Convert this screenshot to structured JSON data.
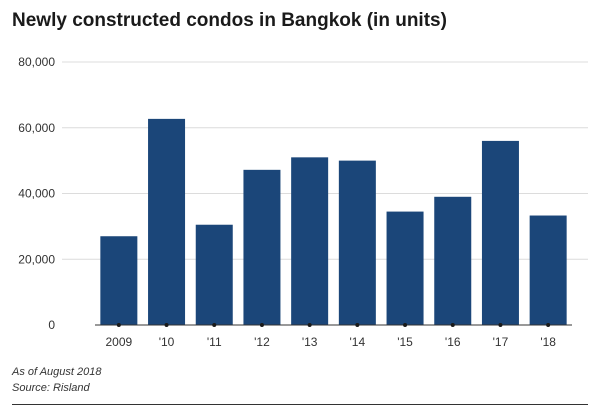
{
  "chart_data": {
    "type": "bar",
    "title": "Newly constructed condos in Bangkok (in units)",
    "xlabel": "",
    "ylabel": "",
    "categories": [
      "2009",
      "'10",
      "'11",
      "'12",
      "'13",
      "'14",
      "'15",
      "'16",
      "'17",
      "'18"
    ],
    "values": [
      27000,
      62700,
      30500,
      47200,
      51000,
      50000,
      34500,
      39000,
      56000,
      33300
    ],
    "ylim": [
      0,
      80000
    ],
    "yticks": [
      0,
      20000,
      40000,
      60000,
      80000
    ],
    "ytick_labels": [
      "0",
      "20,000",
      "40,000",
      "60,000",
      "80,000"
    ],
    "grid": true,
    "legend": "none",
    "bar_color": "#1b4679"
  },
  "notes": {
    "as_of": "As of August 2018",
    "source": "Source: Risland"
  }
}
